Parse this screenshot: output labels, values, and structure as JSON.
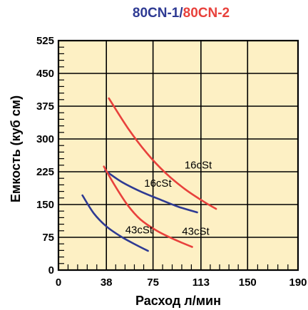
{
  "colors": {
    "plot_background": "#fdf0c4",
    "series_1": "#2e3a93",
    "series_2": "#e8413c"
  },
  "chart_data": {
    "type": "line",
    "title": {
      "part1": "80CN-1",
      "separator": "/",
      "part2": "80CN-2"
    },
    "xlabel": "Расход л/мин",
    "ylabel": "Емкость (куб см)",
    "x_ticks": [
      "0",
      "38",
      "75",
      "113",
      "150",
      "190"
    ],
    "y_ticks": [
      "0",
      "75",
      "150",
      "225",
      "300",
      "375",
      "450",
      "525"
    ],
    "xlim": [
      0,
      190
    ],
    "ylim": [
      0,
      525
    ],
    "grid": true,
    "series": [
      {
        "name": "80CN-1",
        "color_key": "series_1",
        "curves": [
          {
            "label": "16cSt",
            "points": [
              [
                37,
                228
              ],
              [
                50,
                202
              ],
              [
                65,
                180
              ],
              [
                80,
                162
              ],
              [
                95,
                145
              ],
              [
                110,
                132
              ]
            ]
          },
          {
            "label": "43cSt",
            "points": [
              [
                19,
                171
              ],
              [
                28,
                130
              ],
              [
                38,
                100
              ],
              [
                50,
                76
              ],
              [
                62,
                57
              ],
              [
                71,
                44
              ]
            ]
          }
        ]
      },
      {
        "name": "80CN-2",
        "color_key": "series_2",
        "curves": [
          {
            "label": "16cSt",
            "points": [
              [
                40,
                393
              ],
              [
                55,
                325
              ],
              [
                70,
                268
              ],
              [
                85,
                222
              ],
              [
                100,
                186
              ],
              [
                115,
                157
              ],
              [
                125,
                140
              ]
            ]
          },
          {
            "label": "43cSt",
            "points": [
              [
                36,
                237
              ],
              [
                45,
                192
              ],
              [
                55,
                148
              ],
              [
                65,
                116
              ],
              [
                78,
                90
              ],
              [
                92,
                70
              ],
              [
                106,
                53
              ]
            ]
          }
        ]
      }
    ],
    "annotations": [
      {
        "text": "16cSt",
        "x": 100,
        "y": 232
      },
      {
        "text": "16cSt",
        "x": 68,
        "y": 191
      },
      {
        "text": "43cSt",
        "x": 53,
        "y": 84
      },
      {
        "text": "43cSt",
        "x": 98,
        "y": 81
      }
    ]
  }
}
